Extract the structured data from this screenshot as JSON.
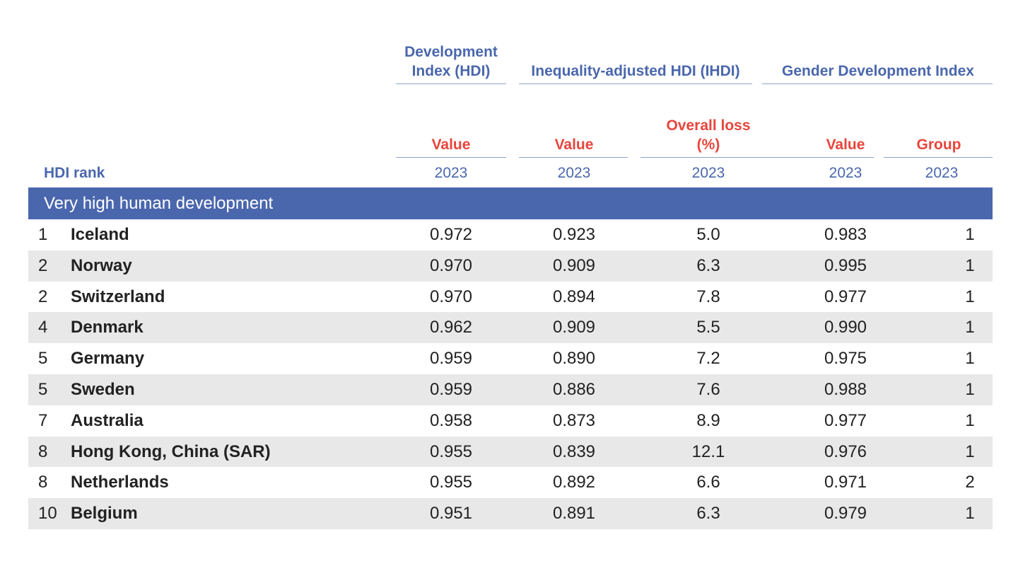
{
  "headers": {
    "hdi_group": "Development Index (HDI)",
    "ihdi_group": "Inequality-adjusted HDI (IHDI)",
    "gdi_group": "Gender Development Index",
    "hdi_value": "Value",
    "ihdi_value": "Value",
    "ihdi_loss": "Overall loss (%)",
    "gdi_value": "Value",
    "gdi_group_col": "Group",
    "rank_label": "HDI rank",
    "year": "2023"
  },
  "section": "Very high human development",
  "rows": [
    {
      "rank": "1",
      "country": "Iceland",
      "hdi": "0.972",
      "ihdi": "0.923",
      "loss": "5.0",
      "gdi": "0.983",
      "group": "1"
    },
    {
      "rank": "2",
      "country": "Norway",
      "hdi": "0.970",
      "ihdi": "0.909",
      "loss": "6.3",
      "gdi": "0.995",
      "group": "1"
    },
    {
      "rank": "2",
      "country": "Switzerland",
      "hdi": "0.970",
      "ihdi": "0.894",
      "loss": "7.8",
      "gdi": "0.977",
      "group": "1"
    },
    {
      "rank": "4",
      "country": "Denmark",
      "hdi": "0.962",
      "ihdi": "0.909",
      "loss": "5.5",
      "gdi": "0.990",
      "group": "1"
    },
    {
      "rank": "5",
      "country": "Germany",
      "hdi": "0.959",
      "ihdi": "0.890",
      "loss": "7.2",
      "gdi": "0.975",
      "group": "1"
    },
    {
      "rank": "5",
      "country": "Sweden",
      "hdi": "0.959",
      "ihdi": "0.886",
      "loss": "7.6",
      "gdi": "0.988",
      "group": "1"
    },
    {
      "rank": "7",
      "country": "Australia",
      "hdi": "0.958",
      "ihdi": "0.873",
      "loss": "8.9",
      "gdi": "0.977",
      "group": "1"
    },
    {
      "rank": "8",
      "country": "Hong Kong, China (SAR)",
      "hdi": "0.955",
      "ihdi": "0.839",
      "loss": "12.1",
      "gdi": "0.976",
      "group": "1"
    },
    {
      "rank": "8",
      "country": "Netherlands",
      "hdi": "0.955",
      "ihdi": "0.892",
      "loss": "6.6",
      "gdi": "0.971",
      "group": "2"
    },
    {
      "rank": "10",
      "country": "Belgium",
      "hdi": "0.951",
      "ihdi": "0.891",
      "loss": "6.3",
      "gdi": "0.979",
      "group": "1"
    }
  ]
}
